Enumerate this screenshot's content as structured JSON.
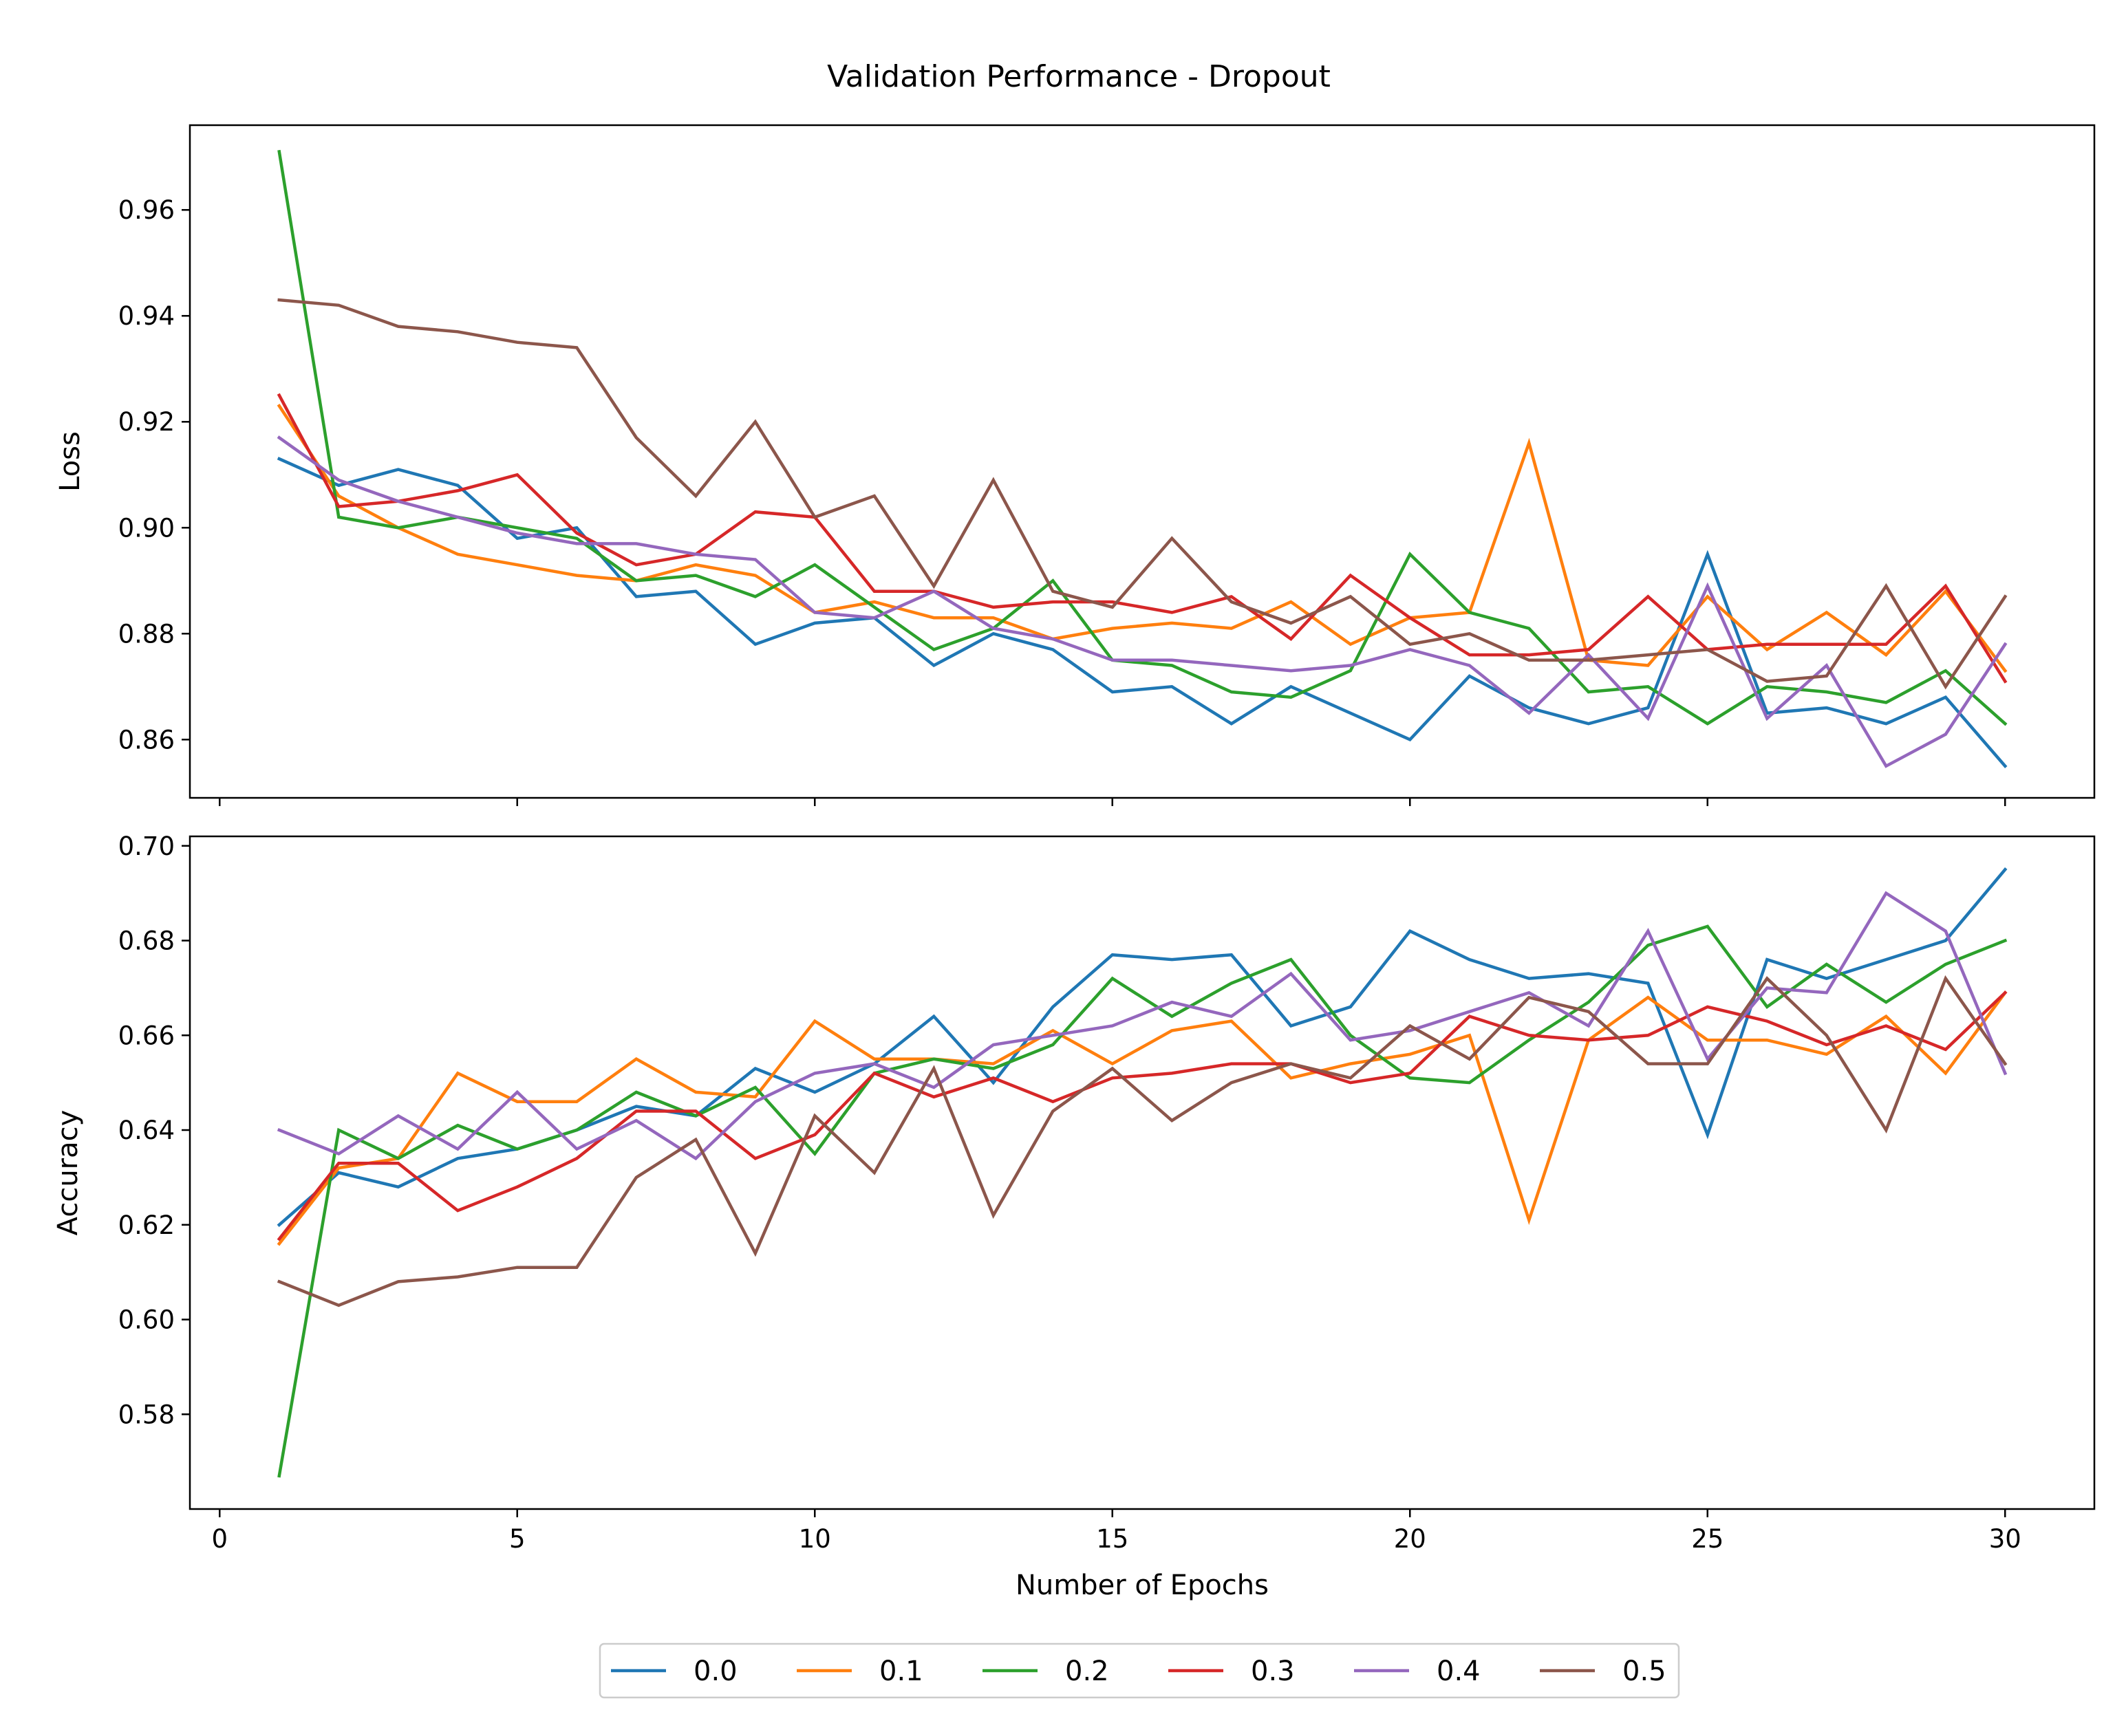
{
  "chart_data": {
    "type": "line",
    "title": "Validation Performance - Dropout",
    "xlabel": "Number of Epochs",
    "xlim": [
      -0.5,
      31.5
    ],
    "x_ticks": [
      0,
      5,
      10,
      15,
      20,
      25,
      30
    ],
    "x": [
      1,
      2,
      3,
      4,
      5,
      6,
      7,
      8,
      9,
      10,
      11,
      12,
      13,
      14,
      15,
      16,
      17,
      18,
      19,
      20,
      21,
      22,
      23,
      24,
      25,
      26,
      27,
      28,
      29,
      30
    ],
    "legend": {
      "placement": "bottom-center",
      "columns": 6
    },
    "grid": false,
    "series_styles": [
      {
        "name": "0.0",
        "color": "#1f77b4"
      },
      {
        "name": "0.1",
        "color": "#ff7f0e"
      },
      {
        "name": "0.2",
        "color": "#2ca02c"
      },
      {
        "name": "0.3",
        "color": "#d62728"
      },
      {
        "name": "0.4",
        "color": "#9467bd"
      },
      {
        "name": "0.5",
        "color": "#8c564b"
      }
    ],
    "panels": [
      {
        "ylabel": "Loss",
        "ylim": [
          0.849,
          0.976
        ],
        "y_ticks": [
          0.86,
          0.88,
          0.9,
          0.92,
          0.94,
          0.96
        ],
        "y_tick_labels": [
          "0.86",
          "0.88",
          "0.90",
          "0.92",
          "0.94",
          "0.96"
        ],
        "series": [
          {
            "name": "0.0",
            "values": [
              0.913,
              0.908,
              0.911,
              0.908,
              0.898,
              0.9,
              0.887,
              0.888,
              0.878,
              0.882,
              0.883,
              0.874,
              0.88,
              0.877,
              0.869,
              0.87,
              0.863,
              0.87,
              0.865,
              0.86,
              0.872,
              0.866,
              0.863,
              0.866,
              0.895,
              0.865,
              0.866,
              0.863,
              0.868,
              0.855
            ]
          },
          {
            "name": "0.1",
            "values": [
              0.923,
              0.906,
              0.9,
              0.895,
              0.893,
              0.891,
              0.89,
              0.893,
              0.891,
              0.884,
              0.886,
              0.883,
              0.883,
              0.879,
              0.881,
              0.882,
              0.881,
              0.886,
              0.878,
              0.883,
              0.884,
              0.916,
              0.875,
              0.874,
              0.887,
              0.877,
              0.884,
              0.876,
              0.888,
              0.873
            ]
          },
          {
            "name": "0.2",
            "values": [
              0.971,
              0.902,
              0.9,
              0.902,
              0.9,
              0.898,
              0.89,
              0.891,
              0.887,
              0.893,
              0.885,
              0.877,
              0.881,
              0.89,
              0.875,
              0.874,
              0.869,
              0.868,
              0.873,
              0.895,
              0.884,
              0.881,
              0.869,
              0.87,
              0.863,
              0.87,
              0.869,
              0.867,
              0.873,
              0.863
            ]
          },
          {
            "name": "0.3",
            "values": [
              0.925,
              0.904,
              0.905,
              0.907,
              0.91,
              0.899,
              0.893,
              0.895,
              0.903,
              0.902,
              0.888,
              0.888,
              0.885,
              0.886,
              0.886,
              0.884,
              0.887,
              0.879,
              0.891,
              0.883,
              0.876,
              0.876,
              0.877,
              0.887,
              0.877,
              0.878,
              0.878,
              0.878,
              0.889,
              0.871
            ]
          },
          {
            "name": "0.4",
            "values": [
              0.917,
              0.909,
              0.905,
              0.902,
              0.899,
              0.897,
              0.897,
              0.895,
              0.894,
              0.884,
              0.883,
              0.888,
              0.881,
              0.879,
              0.875,
              0.875,
              0.874,
              0.873,
              0.874,
              0.877,
              0.874,
              0.865,
              0.876,
              0.864,
              0.889,
              0.864,
              0.874,
              0.855,
              0.861,
              0.878
            ]
          },
          {
            "name": "0.5",
            "values": [
              0.943,
              0.942,
              0.938,
              0.937,
              0.935,
              0.934,
              0.917,
              0.906,
              0.92,
              0.902,
              0.906,
              0.889,
              0.909,
              0.888,
              0.885,
              0.898,
              0.886,
              0.882,
              0.887,
              0.878,
              0.88,
              0.875,
              0.875,
              0.876,
              0.877,
              0.871,
              0.872,
              0.889,
              0.87,
              0.887
            ]
          }
        ]
      },
      {
        "ylabel": "Accuracy",
        "ylim": [
          0.56,
          0.702
        ],
        "y_ticks": [
          0.58,
          0.6,
          0.62,
          0.64,
          0.66,
          0.68,
          0.7
        ],
        "y_tick_labels": [
          "0.58",
          "0.60",
          "0.62",
          "0.64",
          "0.66",
          "0.68",
          "0.70"
        ],
        "series": [
          {
            "name": "0.0",
            "values": [
              0.62,
              0.631,
              0.628,
              0.634,
              0.636,
              0.64,
              0.645,
              0.643,
              0.653,
              0.648,
              0.654,
              0.664,
              0.65,
              0.666,
              0.677,
              0.676,
              0.677,
              0.662,
              0.666,
              0.682,
              0.676,
              0.672,
              0.673,
              0.671,
              0.639,
              0.676,
              0.672,
              0.676,
              0.68,
              0.695
            ]
          },
          {
            "name": "0.1",
            "values": [
              0.616,
              0.632,
              0.634,
              0.652,
              0.646,
              0.646,
              0.655,
              0.648,
              0.647,
              0.663,
              0.655,
              0.655,
              0.654,
              0.661,
              0.654,
              0.661,
              0.663,
              0.651,
              0.654,
              0.656,
              0.66,
              0.621,
              0.659,
              0.668,
              0.659,
              0.659,
              0.656,
              0.664,
              0.652,
              0.669
            ]
          },
          {
            "name": "0.2",
            "values": [
              0.567,
              0.64,
              0.634,
              0.641,
              0.636,
              0.64,
              0.648,
              0.643,
              0.649,
              0.635,
              0.652,
              0.655,
              0.653,
              0.658,
              0.672,
              0.664,
              0.671,
              0.676,
              0.66,
              0.651,
              0.65,
              0.659,
              0.667,
              0.679,
              0.683,
              0.666,
              0.675,
              0.667,
              0.675,
              0.68
            ]
          },
          {
            "name": "0.3",
            "values": [
              0.617,
              0.633,
              0.633,
              0.623,
              0.628,
              0.634,
              0.644,
              0.644,
              0.634,
              0.639,
              0.652,
              0.647,
              0.651,
              0.646,
              0.651,
              0.652,
              0.654,
              0.654,
              0.65,
              0.652,
              0.664,
              0.66,
              0.659,
              0.66,
              0.666,
              0.663,
              0.658,
              0.662,
              0.657,
              0.669
            ]
          },
          {
            "name": "0.4",
            "values": [
              0.64,
              0.635,
              0.643,
              0.636,
              0.648,
              0.636,
              0.642,
              0.634,
              0.646,
              0.652,
              0.654,
              0.649,
              0.658,
              0.66,
              0.662,
              0.667,
              0.664,
              0.673,
              0.659,
              0.661,
              0.665,
              0.669,
              0.662,
              0.682,
              0.655,
              0.67,
              0.669,
              0.69,
              0.682,
              0.652
            ]
          },
          {
            "name": "0.5",
            "values": [
              0.608,
              0.603,
              0.608,
              0.609,
              0.611,
              0.611,
              0.63,
              0.638,
              0.614,
              0.643,
              0.631,
              0.653,
              0.622,
              0.644,
              0.653,
              0.642,
              0.65,
              0.654,
              0.651,
              0.662,
              0.655,
              0.668,
              0.665,
              0.654,
              0.654,
              0.672,
              0.66,
              0.64,
              0.672,
              0.654
            ]
          }
        ]
      }
    ]
  }
}
